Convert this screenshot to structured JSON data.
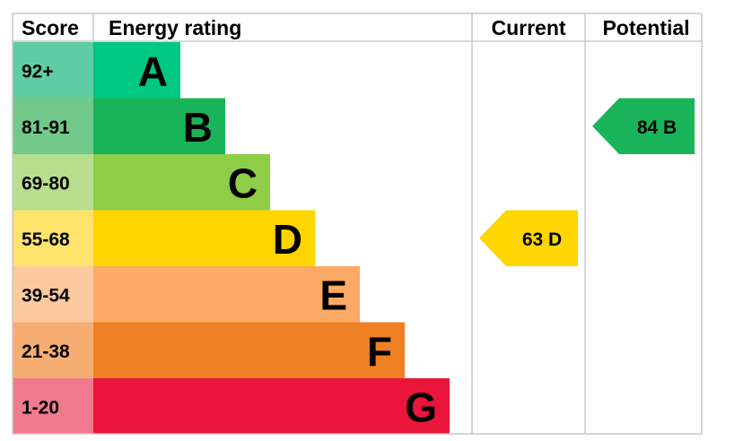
{
  "headers": {
    "score": "Score",
    "energy_rating": "Energy rating",
    "current": "Current",
    "potential": "Potential"
  },
  "chart_data": {
    "type": "bar",
    "bands": [
      {
        "letter": "A",
        "score_range": "92+",
        "min": 92,
        "max": 100,
        "color": "#00c781",
        "score_bg": "#5fcda4"
      },
      {
        "letter": "B",
        "score_range": "81-91",
        "min": 81,
        "max": 91,
        "color": "#19b459",
        "score_bg": "#71c98a"
      },
      {
        "letter": "C",
        "score_range": "69-80",
        "min": 69,
        "max": 80,
        "color": "#8dce46",
        "score_bg": "#b6de8d"
      },
      {
        "letter": "D",
        "score_range": "55-68",
        "min": 55,
        "max": 68,
        "color": "#ffd500",
        "score_bg": "#ffe36b"
      },
      {
        "letter": "E",
        "score_range": "39-54",
        "min": 39,
        "max": 54,
        "color": "#fcaa65",
        "score_bg": "#fdc99e"
      },
      {
        "letter": "F",
        "score_range": "21-38",
        "min": 21,
        "max": 38,
        "color": "#ef8023",
        "score_bg": "#f5ad72"
      },
      {
        "letter": "G",
        "score_range": "1-20",
        "min": 1,
        "max": 20,
        "color": "#e9153b",
        "score_bg": "#f07a8e"
      }
    ],
    "current": {
      "value": 63,
      "rating": "D",
      "label": "63  D",
      "color": "#ffd500"
    },
    "potential": {
      "value": 84,
      "rating": "B",
      "label": "84  B",
      "color": "#19b459"
    }
  }
}
